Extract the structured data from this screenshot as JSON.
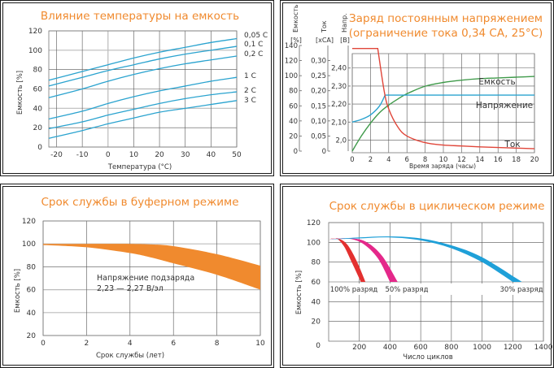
{
  "chart_data": [
    {
      "id": "temperature",
      "type": "line",
      "title": "Влияние температуры на емкость",
      "xlabel": "Температура (°C)",
      "ylabel": "Емкость [%]",
      "xlim": [
        -23,
        50
      ],
      "ylim": [
        0,
        120
      ],
      "xticks": [
        -20,
        -10,
        0,
        10,
        20,
        30,
        40,
        50
      ],
      "yticks": [
        0,
        20,
        40,
        60,
        80,
        100,
        120
      ],
      "grid": true,
      "line_color": "#2aa3cf",
      "x": [
        -23,
        -10,
        0,
        10,
        20,
        30,
        40,
        50
      ],
      "series": [
        {
          "name": "0,05 C",
          "values": [
            69,
            78,
            85,
            92,
            98,
            103,
            108,
            112
          ]
        },
        {
          "name": "0,1 C",
          "values": [
            63,
            72,
            79,
            85,
            91,
            96,
            100,
            104
          ]
        },
        {
          "name": "0,2 C",
          "values": [
            51,
            60,
            68,
            75,
            81,
            86,
            90,
            94
          ]
        },
        {
          "name": "1 C",
          "values": [
            29,
            37,
            45,
            52,
            58,
            63,
            68,
            72
          ]
        },
        {
          "name": "2 C",
          "values": [
            19,
            26,
            33,
            39,
            45,
            50,
            54,
            57
          ]
        },
        {
          "name": "3 C",
          "values": [
            9,
            17,
            24,
            30,
            36,
            40,
            44,
            48
          ]
        }
      ]
    },
    {
      "id": "const-voltage",
      "type": "line",
      "title": "Заряд постоянным напряжением",
      "subtitle": "(ограничение тока 0,34 CA, 25°C)",
      "xlabel": "Время заряда (часы)",
      "xlim": [
        0,
        20
      ],
      "xticks": [
        0,
        2,
        4,
        6,
        8,
        10,
        12,
        14,
        16,
        18,
        20
      ],
      "grid": true,
      "axes": [
        {
          "name": "Емкость",
          "unit": "[%]",
          "ticks": [
            "0",
            "20",
            "40",
            "60",
            "80",
            "100",
            "120",
            "140"
          ],
          "range": [
            0,
            140
          ]
        },
        {
          "name": "Ток",
          "unit": "[xCA]",
          "ticks": [
            "0",
            "0,05",
            "0,10",
            "0,15",
            "0,20",
            "0,25",
            "0,30"
          ],
          "range": [
            0,
            0.35
          ]
        },
        {
          "name": "Напр.",
          "unit": "[B]",
          "ticks": [
            "2,0",
            "2,10",
            "2,20",
            "2,30",
            "2,40"
          ],
          "range": [
            1.93,
            2.48
          ]
        }
      ],
      "series": [
        {
          "name": "Емкость",
          "color": "#3f9a4a",
          "axis": "Емкость",
          "x": [
            0,
            1,
            2,
            3,
            4,
            5,
            6,
            8,
            10,
            12,
            14,
            16,
            18,
            20
          ],
          "values": [
            0,
            20,
            37,
            51,
            61,
            69,
            76,
            86,
            91,
            94,
            96,
            97,
            98,
            99
          ]
        },
        {
          "name": "Напряжение",
          "color": "#2aa3cf",
          "axis": "Напр.",
          "x": [
            0,
            1,
            2,
            3,
            3.6,
            20
          ],
          "values": [
            2.1,
            2.115,
            2.14,
            2.19,
            2.25,
            2.25
          ]
        },
        {
          "name": "Ток",
          "color": "#e0463a",
          "axis": "Ток",
          "x": [
            0,
            2.8,
            3.5,
            4,
            5,
            6,
            8,
            10,
            12,
            14,
            16,
            18,
            20
          ],
          "values": [
            0.34,
            0.34,
            0.2,
            0.14,
            0.08,
            0.05,
            0.028,
            0.02,
            0.017,
            0.014,
            0.012,
            0.01,
            0.008
          ]
        }
      ]
    },
    {
      "id": "float-life",
      "type": "area",
      "title": "Срок службы в буферном режиме",
      "xlabel": "Срок службы (лет)",
      "ylabel": "Емкость [%]",
      "xlim": [
        0,
        10
      ],
      "ylim": [
        20,
        120
      ],
      "xticks": [
        0,
        2,
        4,
        6,
        8,
        10
      ],
      "yticks": [
        20,
        40,
        60,
        80,
        100,
        120
      ],
      "grid": true,
      "fill_color": "#f08a2e",
      "annotation": [
        "Напряжение подзаряда",
        "2,23 — 2,27 В/эл"
      ],
      "x": [
        0,
        2,
        4,
        5,
        6,
        8,
        10
      ],
      "upper": [
        100,
        100,
        100,
        99.5,
        98,
        91,
        81
      ],
      "lower": [
        99,
        97,
        92,
        88,
        83,
        73,
        60
      ]
    },
    {
      "id": "cycle-life",
      "type": "area",
      "title": "Срок службы в циклическом режиме",
      "xlabel": "Число циклов",
      "ylabel": "Емкость [%]",
      "xlim": [
        0,
        1400
      ],
      "ylim": [
        0,
        120
      ],
      "xticks": [
        0,
        200,
        400,
        600,
        800,
        1000,
        1200,
        1400
      ],
      "yticks": [
        0,
        20,
        40,
        60,
        80,
        100,
        120
      ],
      "grid": true,
      "series": [
        {
          "name": "100% разряд",
          "color": "#e3302f",
          "x": [
            0,
            50,
            100,
            150,
            200
          ],
          "upper_x": [
            0,
            60,
            120,
            180,
            240
          ],
          "upper": [
            103,
            104,
            98,
            82,
            60
          ],
          "lower_x": [
            0,
            50,
            100,
            150,
            210
          ],
          "lower": [
            103,
            104,
            96,
            80,
            60
          ]
        },
        {
          "name": "50% разряд",
          "color": "#e4288a",
          "upper_x": [
            0,
            150,
            250,
            350,
            450
          ],
          "upper": [
            103,
            104,
            100,
            86,
            60
          ],
          "lower_x": [
            0,
            120,
            220,
            320,
            400
          ],
          "lower": [
            103,
            104,
            99,
            84,
            60
          ]
        },
        {
          "name": "30% разряд",
          "color": "#1fa0d8",
          "upper_x": [
            0,
            200,
            400,
            600,
            800,
            1000,
            1260
          ],
          "upper": [
            103,
            105,
            106,
            104,
            97,
            85,
            60
          ],
          "lower_x": [
            0,
            200,
            400,
            600,
            800,
            1000,
            1200
          ],
          "lower": [
            103,
            104,
            105,
            102,
            94,
            80,
            60
          ]
        }
      ]
    }
  ]
}
